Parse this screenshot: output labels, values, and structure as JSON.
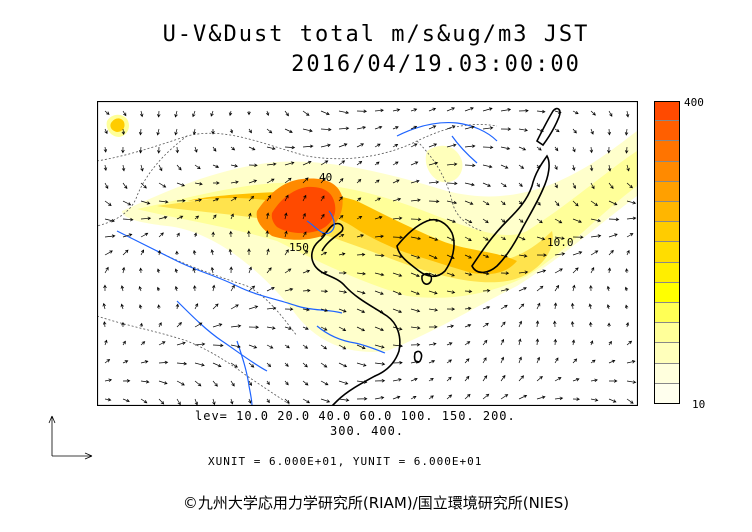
{
  "title": {
    "line1": "U-V&Dust total m/s&ug/m3 JST",
    "line2": "2016/04/19.03:00:00"
  },
  "colorbar": {
    "max_label": "400",
    "min_label": "10",
    "colors": [
      "#ff4a00",
      "#ff5f00",
      "#ff7400",
      "#ff8a00",
      "#ffa000",
      "#ffb600",
      "#ffcc00",
      "#ffdd00",
      "#ffee00",
      "#ffff00",
      "#ffff55",
      "#ffff99",
      "#ffffbb",
      "#ffffdd",
      "#ffffee"
    ]
  },
  "levels_line1": "lev= 10.0 20.0 40.0 60.0 100. 150. 200.",
  "levels_line2": "300. 400.",
  "units": "XUNIT = 6.000E+01, YUNIT = 6.000E+01",
  "credit": "©九州大学応用力学研究所(RIAM)/国立環境研究所(NIES)",
  "map_labels": [
    "40",
    "150",
    "10.0"
  ],
  "colors": {
    "coast": "#000000",
    "rivers": "#1e64ff",
    "border": "#555555"
  }
}
